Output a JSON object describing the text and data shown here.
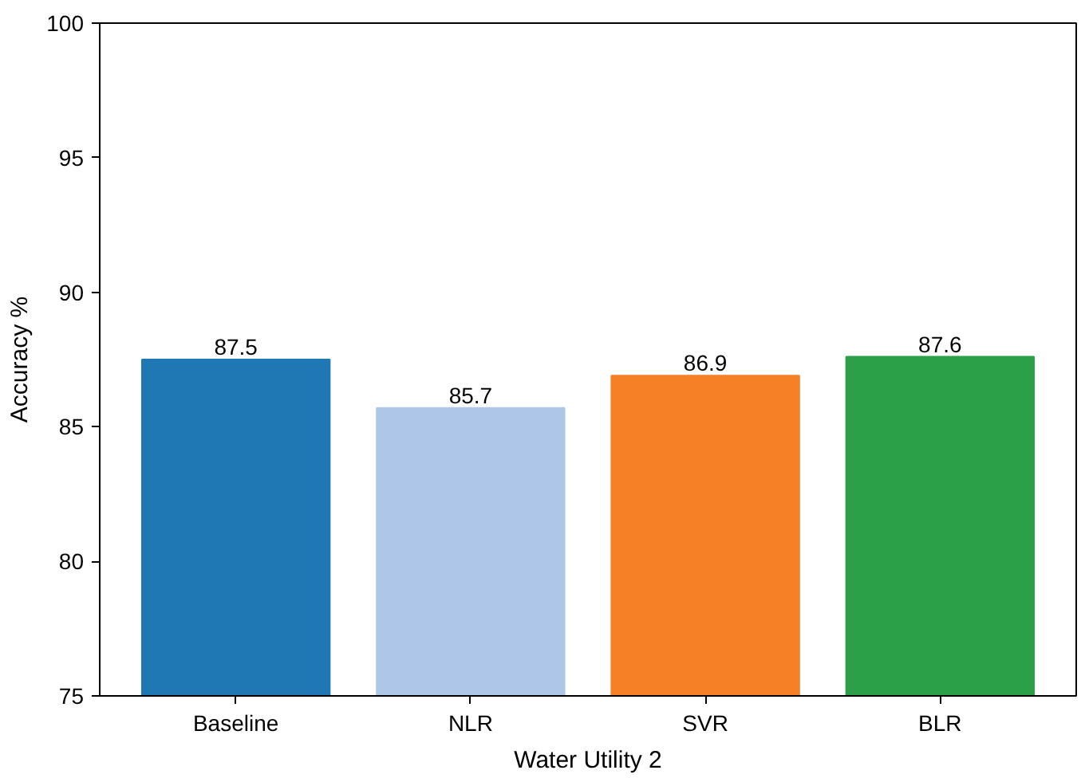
{
  "chart_data": {
    "type": "bar",
    "xlabel": "Water Utility 2",
    "ylabel": "Accuracy %",
    "categories": [
      "Baseline",
      "NLR",
      "SVR",
      "BLR"
    ],
    "values": [
      87.5,
      85.7,
      86.9,
      87.6
    ],
    "colors": [
      "#1f77b4",
      "#aec7e8",
      "#f58025",
      "#2ca048"
    ],
    "ylim": [
      75,
      100
    ],
    "yticks": [
      75,
      80,
      85,
      90,
      95,
      100
    ],
    "grid": false,
    "data_labels": true
  }
}
